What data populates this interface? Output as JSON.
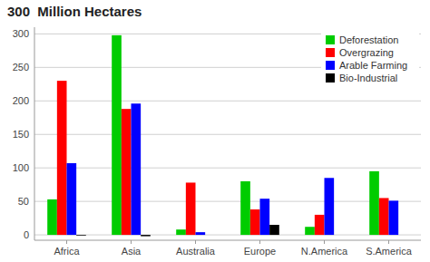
{
  "chart_data": {
    "type": "bar",
    "title": "300  Million Hectares",
    "categories": [
      "Africa",
      "Asia",
      "Australia",
      "Europe",
      "N.America",
      "S.America"
    ],
    "series": [
      {
        "name": "Deforestation",
        "color": "#00cc00",
        "values": [
          53,
          298,
          8,
          80,
          12,
          95
        ]
      },
      {
        "name": "Overgrazing",
        "color": "#ff0000",
        "values": [
          230,
          188,
          78,
          38,
          30,
          55
        ]
      },
      {
        "name": "Arable Farming",
        "color": "#0000ff",
        "values": [
          107,
          196,
          4,
          54,
          85,
          51
        ]
      },
      {
        "name": "Bio-Industrial",
        "color": "#000000",
        "values": [
          -1,
          -2,
          0,
          15,
          0,
          0
        ]
      }
    ],
    "ylim": [
      -8,
      310
    ],
    "yticks": [
      0,
      50,
      100,
      150,
      200,
      250,
      300
    ],
    "grid": true,
    "legend": "upper right"
  }
}
